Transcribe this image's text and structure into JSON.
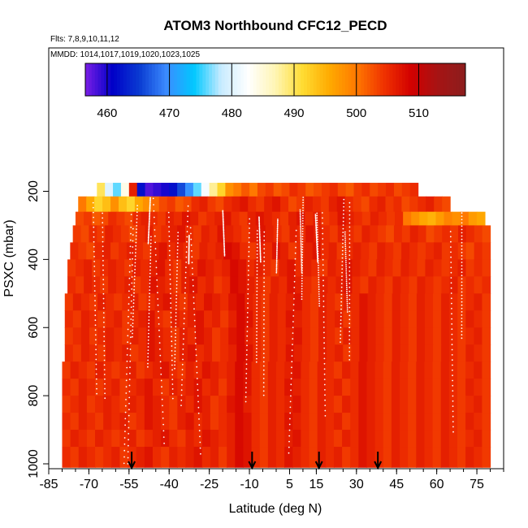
{
  "chart_data": {
    "type": "heatmap",
    "title": "ATOM3 Northbound CFC12_PECD",
    "subtitle_flights": "Flts: 7,8,9,10,11,12",
    "subtitle_dates": "MMDD: 1014,1017,1019,1020,1023,1025",
    "xlabel": "Latitude (deg N)",
    "ylabel": "PSXC (mbar)",
    "xlim": [
      -85,
      85
    ],
    "ylim": [
      1020,
      0
    ],
    "x_ticks": [
      -85,
      -70,
      -55,
      -40,
      -25,
      -10,
      5,
      15,
      30,
      45,
      60,
      75
    ],
    "y_ticks": [
      200,
      400,
      600,
      800,
      1000
    ],
    "colorbar": {
      "min": 456.5,
      "max": 517.5,
      "ticks": [
        460,
        470,
        480,
        490,
        500,
        510
      ],
      "colors": [
        "#7a1ee6",
        "#0000c8",
        "#0a3cd2",
        "#3c8cff",
        "#00c8ff",
        "#c8ebff",
        "#ffffff",
        "#fff5b4",
        "#ffdc32",
        "#ffaa00",
        "#ff7800",
        "#f03200",
        "#d20000",
        "#a51414",
        "#8c1e1e"
      ]
    },
    "arrows_latitude": [
      -54,
      -9,
      16,
      38
    ],
    "layers": [
      {
        "p_top": 175,
        "p_bottom": 215,
        "lat_start": -67,
        "lat_end": 53,
        "values": [
          490,
          480,
          476,
          484,
          506,
          462,
          458,
          459,
          460,
          462,
          466,
          470,
          476,
          482,
          488,
          492,
          498,
          500,
          502,
          500,
          503,
          504,
          502,
          503,
          505,
          504,
          502,
          503,
          504,
          505,
          503,
          502,
          504,
          505,
          503,
          504,
          505,
          503,
          504,
          505
        ]
      },
      {
        "p_top": 215,
        "p_bottom": 260,
        "lat_start": -74,
        "lat_end": 65,
        "values": [
          500,
          496,
          492,
          494,
          498,
          494,
          492,
          496,
          498,
          501,
          503,
          504,
          502,
          503,
          505,
          506,
          504,
          503,
          505,
          506,
          507,
          505,
          504,
          506,
          507,
          505,
          503,
          504,
          506,
          505,
          504,
          506,
          507,
          505,
          504,
          503,
          505,
          506,
          504,
          505,
          503,
          504,
          505,
          506,
          504,
          503
        ]
      },
      {
        "p_top": 260,
        "p_bottom": 300,
        "lat_start": -75,
        "lat_end": 78,
        "values": [
          503,
          504,
          502,
          503,
          505,
          504,
          503,
          505,
          506,
          505,
          504,
          506,
          505,
          507,
          506,
          504,
          505,
          506,
          507,
          505,
          504,
          506,
          507,
          506,
          505,
          504,
          506,
          507,
          505,
          506,
          504,
          505,
          507,
          506,
          505,
          504,
          506,
          505,
          504,
          505,
          500,
          498,
          496,
          495,
          497,
          499,
          498,
          500,
          497,
          496
        ]
      },
      {
        "p_top": 300,
        "p_bottom": 350,
        "lat_start": -76,
        "lat_end": 80,
        "values": [
          504,
          503,
          505,
          504,
          506,
          505,
          504,
          503,
          505,
          506,
          504,
          505,
          506,
          507,
          505,
          504,
          506,
          505,
          507,
          506,
          505,
          504,
          506,
          507,
          506,
          505,
          504,
          506,
          505,
          507,
          506,
          505,
          504,
          506,
          505,
          504,
          506,
          505,
          504,
          503,
          505,
          504,
          506,
          505,
          503,
          504,
          505,
          504,
          506,
          505,
          504,
          503
        ]
      },
      {
        "p_top": 350,
        "p_bottom": 400,
        "lat_start": -77,
        "lat_end": 80,
        "values": [
          505,
          504,
          503,
          505,
          506,
          504,
          505,
          506,
          505,
          504,
          506,
          507,
          505,
          506,
          505,
          504,
          506,
          505,
          506,
          508,
          507,
          505,
          504,
          506,
          505,
          507,
          506,
          504,
          505,
          506,
          507,
          505,
          506,
          504,
          505,
          506,
          505,
          504,
          506,
          505,
          504,
          506,
          505,
          504,
          505,
          506,
          504,
          505,
          504,
          503,
          505,
          504
        ]
      },
      {
        "p_top": 400,
        "p_bottom": 450,
        "lat_start": -78,
        "lat_end": 80,
        "values": [
          504,
          505,
          506,
          504,
          505,
          506,
          505,
          504,
          506,
          505,
          506,
          507,
          505,
          504,
          506,
          505,
          507,
          506,
          505,
          506,
          508,
          507,
          505,
          506,
          505,
          504,
          506,
          507,
          505,
          506,
          505,
          504,
          506,
          505,
          507,
          506,
          505,
          504,
          506,
          505,
          504,
          506,
          505,
          504,
          506,
          505,
          504,
          505,
          506,
          504,
          505,
          504
        ]
      },
      {
        "p_top": 450,
        "p_bottom": 500,
        "lat_start": -78,
        "lat_end": 80,
        "values": [
          505,
          504,
          506,
          505,
          504,
          506,
          505,
          506,
          504,
          505,
          507,
          506,
          505,
          504,
          506,
          507,
          505,
          506,
          504,
          505,
          508,
          507,
          506,
          505,
          504,
          506,
          505,
          507,
          506,
          505,
          504,
          506,
          505,
          506,
          507,
          505,
          504,
          506,
          505,
          504,
          506,
          505,
          504,
          506,
          505,
          504,
          505,
          506,
          504,
          505,
          504,
          505
        ]
      },
      {
        "p_top": 500,
        "p_bottom": 550,
        "lat_start": -79,
        "lat_end": 80,
        "values": [
          504,
          506,
          505,
          504,
          506,
          505,
          504,
          505,
          506,
          504,
          505,
          506,
          507,
          505,
          504,
          506,
          505,
          507,
          506,
          505,
          507,
          508,
          506,
          505,
          504,
          506,
          505,
          506,
          507,
          505,
          504,
          506,
          505,
          504,
          506,
          505,
          507,
          506,
          505,
          504,
          506,
          505,
          504,
          506,
          505,
          504,
          506,
          505,
          504,
          505,
          506,
          504
        ]
      },
      {
        "p_top": 550,
        "p_bottom": 600,
        "lat_start": -79,
        "lat_end": 80,
        "values": [
          505,
          504,
          506,
          505,
          504,
          505,
          506,
          504,
          505,
          506,
          507,
          505,
          504,
          506,
          505,
          506,
          507,
          505,
          506,
          504,
          506,
          508,
          507,
          505,
          504,
          506,
          505,
          507,
          506,
          505,
          504,
          506,
          505,
          506,
          504,
          505,
          507,
          506,
          505,
          504,
          506,
          505,
          504,
          506,
          505,
          504,
          506,
          505,
          504,
          506,
          505,
          504
        ]
      },
      {
        "p_top": 600,
        "p_bottom": 650,
        "lat_start": -79,
        "lat_end": 80,
        "values": [
          504,
          505,
          506,
          504,
          505,
          506,
          505,
          504,
          506,
          505,
          507,
          506,
          505,
          504,
          506,
          505,
          507,
          506,
          504,
          505,
          507,
          508,
          506,
          505,
          504,
          506,
          505,
          506,
          507,
          505,
          504,
          506,
          505,
          504,
          506,
          505,
          507,
          506,
          505,
          504,
          506,
          505,
          504,
          506,
          505,
          504,
          506,
          505,
          504,
          505,
          506,
          504
        ]
      },
      {
        "p_top": 650,
        "p_bottom": 700,
        "lat_start": -79,
        "lat_end": 80,
        "values": [
          505,
          504,
          506,
          505,
          504,
          506,
          505,
          506,
          504,
          505,
          507,
          506,
          505,
          504,
          506,
          507,
          505,
          506,
          504,
          505,
          506,
          508,
          507,
          505,
          504,
          506,
          505,
          507,
          506,
          505,
          504,
          506,
          505,
          506,
          504,
          505,
          507,
          506,
          505,
          504,
          506,
          505,
          504,
          506,
          505,
          504,
          506,
          505,
          504,
          506,
          505,
          504
        ]
      },
      {
        "p_top": 700,
        "p_bottom": 750,
        "lat_start": -80,
        "lat_end": 80,
        "values": [
          504,
          506,
          505,
          504,
          506,
          505,
          504,
          505,
          506,
          504,
          505,
          506,
          507,
          505,
          504,
          506,
          505,
          507,
          506,
          505,
          506,
          508,
          507,
          505,
          504,
          506,
          505,
          506,
          507,
          505,
          504,
          506,
          505,
          504,
          506,
          505,
          507,
          506,
          505,
          504,
          506,
          505,
          504,
          506,
          505,
          504,
          506,
          505,
          504,
          505,
          506,
          504
        ]
      },
      {
        "p_top": 750,
        "p_bottom": 800,
        "lat_start": -80,
        "lat_end": 80,
        "values": [
          505,
          504,
          506,
          505,
          504,
          505,
          506,
          504,
          505,
          506,
          507,
          505,
          504,
          506,
          505,
          506,
          507,
          505,
          506,
          504,
          506,
          508,
          507,
          505,
          504,
          506,
          505,
          507,
          506,
          505,
          504,
          506,
          505,
          506,
          504,
          505,
          507,
          506,
          505,
          504,
          506,
          505,
          504,
          506,
          505,
          504,
          506,
          505,
          504,
          506,
          505,
          504
        ]
      },
      {
        "p_top": 800,
        "p_bottom": 850,
        "lat_start": -80,
        "lat_end": 80,
        "values": [
          504,
          505,
          506,
          504,
          505,
          506,
          505,
          504,
          506,
          505,
          507,
          506,
          505,
          504,
          506,
          505,
          507,
          506,
          504,
          505,
          507,
          508,
          506,
          505,
          504,
          506,
          505,
          506,
          507,
          505,
          504,
          506,
          505,
          504,
          506,
          505,
          507,
          506,
          505,
          504,
          506,
          505,
          504,
          506,
          505,
          504,
          506,
          505,
          504,
          505,
          506,
          504
        ]
      },
      {
        "p_top": 850,
        "p_bottom": 900,
        "lat_start": -80,
        "lat_end": 80,
        "values": [
          505,
          504,
          506,
          505,
          504,
          506,
          505,
          506,
          504,
          505,
          507,
          506,
          505,
          504,
          506,
          507,
          505,
          506,
          504,
          505,
          506,
          508,
          507,
          505,
          504,
          506,
          505,
          507,
          506,
          505,
          504,
          506,
          505,
          506,
          504,
          505,
          507,
          506,
          505,
          504,
          506,
          505,
          504,
          506,
          505,
          504,
          506,
          505,
          504,
          506,
          505,
          504
        ]
      },
      {
        "p_top": 900,
        "p_bottom": 950,
        "lat_start": -80,
        "lat_end": 80,
        "values": [
          504,
          506,
          505,
          504,
          506,
          505,
          504,
          505,
          506,
          504,
          505,
          506,
          507,
          505,
          504,
          506,
          505,
          507,
          506,
          505,
          506,
          508,
          507,
          505,
          504,
          506,
          505,
          506,
          507,
          505,
          504,
          506,
          505,
          504,
          506,
          505,
          507,
          506,
          505,
          504,
          506,
          505,
          504,
          506,
          505,
          504,
          506,
          505,
          504,
          505,
          506,
          504
        ]
      },
      {
        "p_top": 950,
        "p_bottom": 1010,
        "lat_start": -80,
        "lat_end": 80,
        "values": [
          505,
          504,
          506,
          505,
          504,
          505,
          506,
          504,
          505,
          506,
          507,
          505,
          504,
          506,
          505,
          506,
          507,
          505,
          506,
          504,
          506,
          508,
          507,
          505,
          504,
          506,
          505,
          507,
          506,
          505,
          504,
          506,
          505,
          506,
          504,
          505,
          507,
          506,
          505,
          504,
          506,
          505,
          504,
          506,
          505,
          504,
          506,
          505,
          504,
          506,
          505,
          504
        ]
      }
    ]
  }
}
